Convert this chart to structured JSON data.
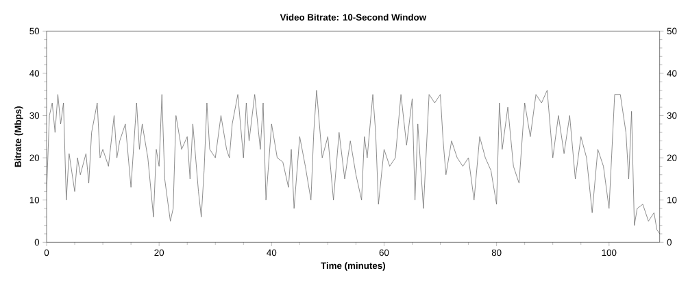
{
  "chart_data": {
    "type": "line",
    "title": "Video Bitrate: 10-Second Window",
    "xlabel": "Time (minutes)",
    "ylabel": "Bitrate (Mbps)",
    "x": [
      0,
      0.5,
      1,
      1.5,
      2,
      2.5,
      3,
      3.5,
      4,
      5,
      5.5,
      6,
      7,
      7.5,
      8,
      9,
      9.5,
      10,
      11,
      12,
      12.5,
      13,
      14,
      15,
      16,
      16.5,
      17,
      18,
      19,
      19.5,
      20,
      20.5,
      21,
      21.5,
      22,
      22.5,
      23,
      24,
      25,
      25.5,
      26,
      27,
      27.5,
      28,
      28.5,
      29,
      30,
      31,
      32,
      32.5,
      33,
      34,
      35,
      35.5,
      36,
      37,
      38,
      38.5,
      39,
      40,
      41,
      42,
      43,
      43.5,
      44,
      45,
      46,
      47,
      47.5,
      48,
      49,
      50,
      51,
      52,
      53,
      54,
      55,
      56,
      56.5,
      57,
      58,
      58.5,
      59,
      60,
      61,
      62,
      63,
      64,
      65,
      65.5,
      66,
      67,
      68,
      69,
      70,
      70.5,
      71,
      72,
      73,
      74,
      75,
      76,
      77,
      78,
      79,
      80,
      80.5,
      81,
      82,
      83,
      84,
      85,
      86,
      87,
      88,
      89,
      90,
      91,
      92,
      93,
      94,
      95,
      96,
      97,
      98,
      99,
      100,
      101,
      102,
      103,
      103.5,
      104,
      104.5,
      105,
      106,
      106.5,
      107,
      108,
      108.5,
      109
    ],
    "series": [
      {
        "color": "#707070",
        "values": [
          12,
          30,
          33,
          26,
          35,
          28,
          33,
          10,
          21,
          12,
          20,
          16,
          21,
          14,
          26,
          33,
          20,
          22,
          18,
          30,
          20,
          24,
          28,
          13,
          33,
          22,
          28,
          20,
          6,
          22,
          18,
          35,
          15,
          10,
          5,
          8,
          30,
          22,
          25,
          15,
          28,
          12,
          6,
          17,
          33,
          22,
          20,
          30,
          22,
          20,
          28,
          35,
          20,
          33,
          24,
          35,
          22,
          33,
          10,
          28,
          20,
          19,
          13,
          22,
          8,
          25,
          18,
          10,
          26,
          36,
          20,
          25,
          10,
          26,
          15,
          24,
          16,
          10,
          25,
          20,
          35,
          26,
          9,
          22,
          18,
          20,
          35,
          23,
          34,
          10,
          28,
          8,
          35,
          33,
          35,
          24,
          16,
          24,
          20,
          18,
          20,
          10,
          25,
          20,
          17,
          9,
          33,
          22,
          32,
          18,
          14,
          33,
          25,
          35,
          33,
          36,
          20,
          30,
          21,
          30,
          15,
          25,
          20,
          7,
          22,
          18,
          8,
          35,
          35,
          26,
          15,
          31,
          4,
          8,
          9,
          7,
          5,
          7,
          3,
          2
        ]
      }
    ],
    "xlim": [
      0,
      109
    ],
    "xticks": [
      0,
      20,
      40,
      60,
      80,
      100
    ],
    "ylim": [
      0,
      50
    ],
    "yticks": [
      0,
      10,
      20,
      30,
      40,
      50
    ],
    "y2lim": [
      0,
      50
    ],
    "y2ticks": [
      0,
      10,
      20,
      30,
      40,
      50
    ],
    "marker": "none",
    "line_style": "solid"
  }
}
